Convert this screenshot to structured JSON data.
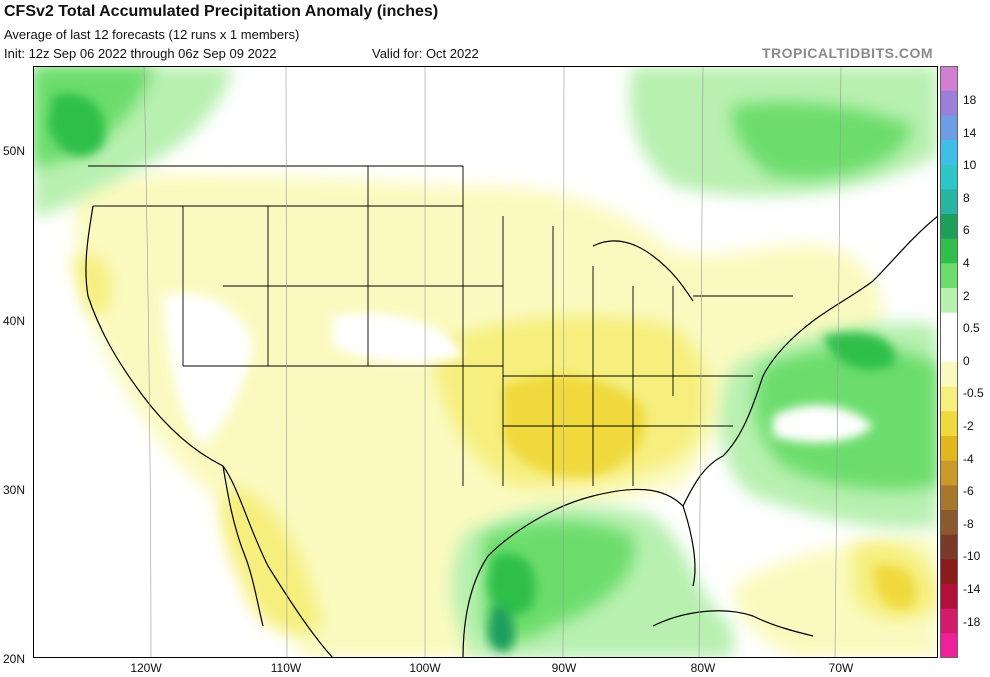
{
  "header": {
    "title": "CFSv2 Total Accumulated Precipitation Anomaly (inches)",
    "subtitle": "Average of last 12 forecasts (12 runs x 1 members)",
    "init": "Init: 12z Sep 06 2022 through 06z Sep 09 2022",
    "valid": "Valid for: Oct 2022",
    "brand": "TROPICALTIDBITS.COM"
  },
  "axes": {
    "lat_labels": [
      "50N",
      "40N",
      "30N",
      "20N"
    ],
    "lon_labels": [
      "120W",
      "110W",
      "100W",
      "90W",
      "80W",
      "70W"
    ],
    "lat_range": [
      20,
      55
    ],
    "lon_range": [
      -128,
      -63.5
    ]
  },
  "colorbar": {
    "labels": [
      "18",
      "14",
      "10",
      "8",
      "6",
      "4",
      "2",
      "0.5",
      "0",
      "-0.5",
      "-2",
      "-4",
      "-6",
      "-8",
      "-10",
      "-14",
      "-18"
    ],
    "colors": [
      "#d27ed2",
      "#9b7fd9",
      "#6f9ce6",
      "#3fbfe8",
      "#2ec7c9",
      "#27b4a2",
      "#1d9e5b",
      "#2fbf4a",
      "#6cdd6c",
      "#b8f0b0",
      "#ffffff",
      "#ffffff",
      "#fafac0",
      "#f6ef7e",
      "#efd93c",
      "#e3b620",
      "#c99a28",
      "#a8772c",
      "#8a5a2e",
      "#7a3a28",
      "#8c1c1c",
      "#b0103a",
      "#d41a6a",
      "#f0209a"
    ]
  },
  "colors": {
    "dry_light": "#fafac0",
    "dry_mid": "#f6ef7e",
    "dry_strong": "#efd93c",
    "wet_light": "#b8f0b0",
    "wet_mid": "#6cdd6c",
    "wet_strong": "#2fbf4a",
    "wet_deep": "#1d9e5b"
  }
}
